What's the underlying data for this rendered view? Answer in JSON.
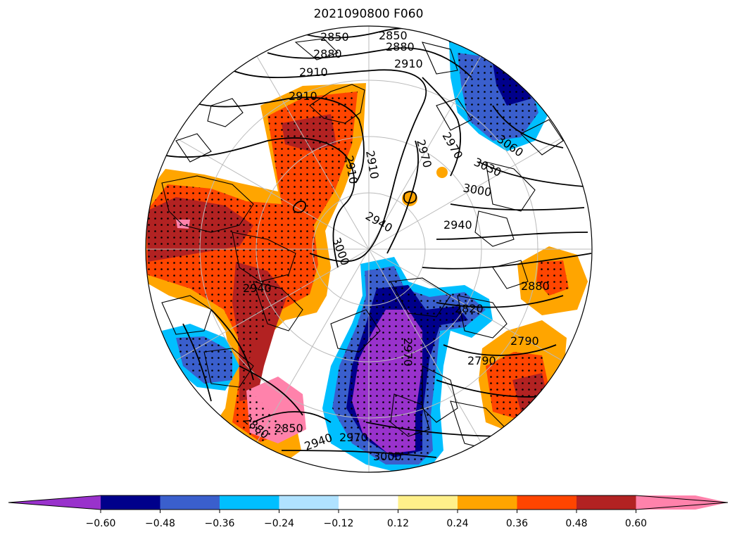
{
  "title": "2021090800 F060",
  "colorbar": {
    "levels": [
      -0.72,
      -0.6,
      -0.48,
      -0.36,
      -0.24,
      -0.12,
      0.12,
      0.24,
      0.36,
      0.48,
      0.6,
      0.72
    ],
    "colors": [
      "#9932cc",
      "#00008b",
      "#3a5fcd",
      "#00bfff",
      "#b0e2ff",
      "#ffffff",
      "#fff08a",
      "#ffa500",
      "#ff4500",
      "#b22222",
      "#ff82ab"
    ],
    "tick_labels": [
      "−0.60",
      "−0.48",
      "−0.36",
      "−0.24",
      "−0.12",
      "0.12",
      "0.24",
      "0.36",
      "0.48",
      "0.60"
    ],
    "extend": "both"
  },
  "contour_labels": [
    "2850",
    "2850",
    "2880",
    "2880",
    "2910",
    "2910",
    "2910",
    "2910",
    "2910",
    "2970",
    "2970",
    "3060",
    "3030",
    "3000",
    "2940",
    "2940",
    "3000",
    "2940",
    "2820",
    "2790",
    "2790",
    "2850",
    "2880",
    "2970",
    "2940",
    "3000",
    "2880",
    "2970"
  ],
  "projection": "north-polar-stereographic",
  "stippling": "significant regions",
  "colors": {
    "contour": "#000000",
    "graticule": "#bbbbbb",
    "coast": "#000000"
  }
}
